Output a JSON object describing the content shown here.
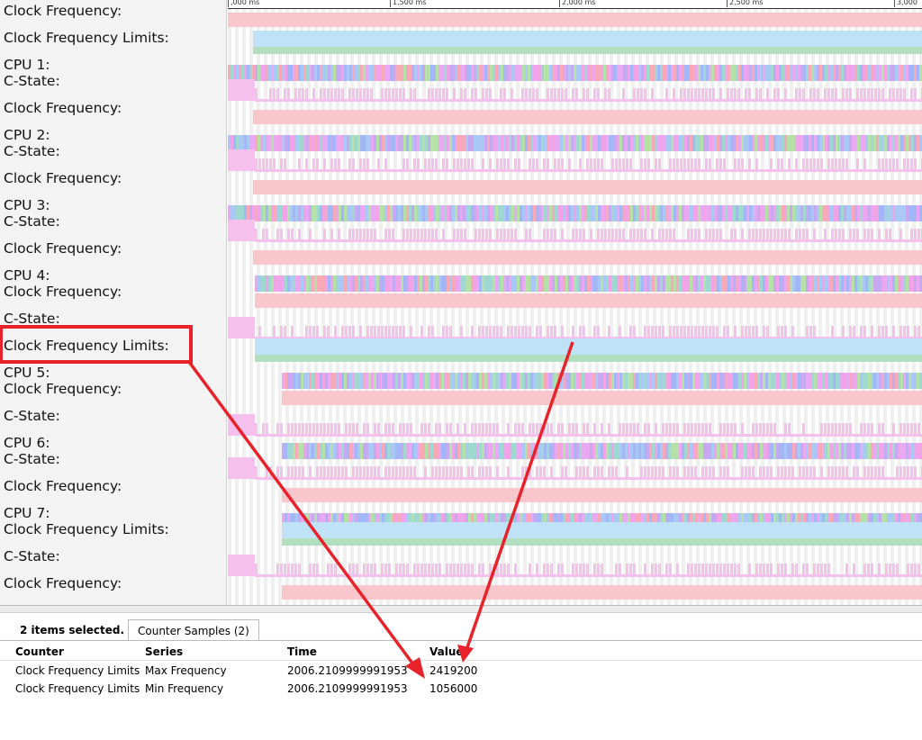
{
  "timeline": {
    "ticks": [
      ",000 ms",
      "1,500 ms",
      "2,000 ms",
      "2,500 ms",
      "3,000 ms"
    ],
    "rows": [
      {
        "label": "Clock Frequency:",
        "kind": "freq"
      },
      {
        "label": "Clock Frequency Limits:",
        "kind": "limits"
      },
      {
        "label": "CPU 1:",
        "kind": "cpu"
      },
      {
        "label": "C-State:",
        "kind": "cstate"
      },
      {
        "label": "Clock Frequency:",
        "kind": "freq"
      },
      {
        "label": "CPU 2:",
        "kind": "cpu"
      },
      {
        "label": "C-State:",
        "kind": "cstate"
      },
      {
        "label": "Clock Frequency:",
        "kind": "freq"
      },
      {
        "label": "CPU 3:",
        "kind": "cpu"
      },
      {
        "label": "C-State:",
        "kind": "cstate"
      },
      {
        "label": "Clock Frequency:",
        "kind": "freq"
      },
      {
        "label": "CPU 4:",
        "kind": "cpu"
      },
      {
        "label": "Clock Frequency:",
        "kind": "freq"
      },
      {
        "label": "C-State:",
        "kind": "cstate"
      },
      {
        "label": "Clock Frequency Limits:",
        "kind": "limits",
        "highlighted": true
      },
      {
        "label": "CPU 5:",
        "kind": "cpu"
      },
      {
        "label": "Clock Frequency:",
        "kind": "freq"
      },
      {
        "label": "C-State:",
        "kind": "cstate"
      },
      {
        "label": "CPU 6:",
        "kind": "cpu"
      },
      {
        "label": "C-State:",
        "kind": "cstate"
      },
      {
        "label": "Clock Frequency:",
        "kind": "freq"
      },
      {
        "label": "CPU 7:",
        "kind": "cpu"
      },
      {
        "label": "Clock Frequency Limits:",
        "kind": "limits"
      },
      {
        "label": "C-State:",
        "kind": "cstate"
      },
      {
        "label": "Clock Frequency:",
        "kind": "freq"
      }
    ]
  },
  "colors": {
    "freq": "#f9c6cc",
    "limits_max": "#c0e2f7",
    "limits_min": "#b3dfc1",
    "cstate": "#f6c0ec",
    "annotation": "#e8222a"
  },
  "details": {
    "selection": "2 items selected.",
    "tab": "Counter Samples (2)",
    "columns": [
      "Counter",
      "Series",
      "Time",
      "Value"
    ],
    "rows": [
      [
        "Clock Frequency Limits",
        "Max Frequency",
        "2006.2109999991953",
        "2419200"
      ],
      [
        "Clock Frequency Limits",
        "Min Frequency",
        "2006.2109999991953",
        "1056000"
      ]
    ]
  }
}
